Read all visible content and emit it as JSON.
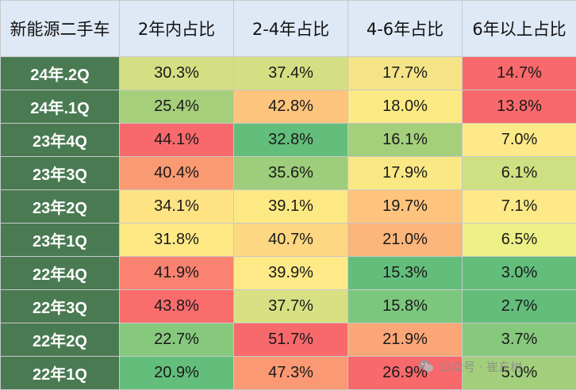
{
  "chart_data": {
    "type": "table",
    "columns": [
      "新能源二手车",
      "2年内占比",
      "2-4年占比",
      "4-6年占比",
      "6年以上占比"
    ],
    "rows": [
      {
        "label": "24年.2Q",
        "values": [
          "30.3%",
          "37.4%",
          "17.7%",
          "14.7%"
        ],
        "colors": [
          "#d3df82",
          "#d4df83",
          "#f4e487",
          "#f8696b"
        ]
      },
      {
        "label": "24年.1Q",
        "values": [
          "25.4%",
          "42.8%",
          "18.0%",
          "13.8%"
        ],
        "colors": [
          "#a6cf7c",
          "#fdc47d",
          "#fbe983",
          "#f8696b"
        ]
      },
      {
        "label": "23年4Q",
        "values": [
          "44.1%",
          "32.8%",
          "16.1%",
          "7.0%"
        ],
        "colors": [
          "#f8696b",
          "#63be7b",
          "#a4cf7b",
          "#fde987"
        ]
      },
      {
        "label": "23年3Q",
        "values": [
          "40.4%",
          "35.6%",
          "17.9%",
          "6.1%"
        ],
        "colors": [
          "#fa9a73",
          "#9ecd7b",
          "#f9e883",
          "#cfe082"
        ]
      },
      {
        "label": "23年2Q",
        "values": [
          "34.1%",
          "39.1%",
          "19.7%",
          "7.1%"
        ],
        "colors": [
          "#fee383",
          "#fde983",
          "#fec47d",
          "#fde987"
        ]
      },
      {
        "label": "23年1Q",
        "values": [
          "31.8%",
          "40.7%",
          "21.0%",
          "6.5%"
        ],
        "colors": [
          "#ffe985",
          "#fdd781",
          "#fcb57a",
          "#ecf086"
        ]
      },
      {
        "label": "22年4Q",
        "values": [
          "41.9%",
          "39.9%",
          "15.3%",
          "3.0%"
        ],
        "colors": [
          "#f98370",
          "#ffea87",
          "#63be7b",
          "#63be7b"
        ]
      },
      {
        "label": "22年3Q",
        "values": [
          "43.8%",
          "37.7%",
          "15.8%",
          "2.7%"
        ],
        "colors": [
          "#f86d6c",
          "#d7e183",
          "#7bc77d",
          "#63be7b"
        ]
      },
      {
        "label": "22年2Q",
        "values": [
          "22.7%",
          "51.7%",
          "21.9%",
          "3.7%"
        ],
        "colors": [
          "#86c97d",
          "#f8696b",
          "#fba676",
          "#86c97d"
        ]
      },
      {
        "label": "22年1Q",
        "values": [
          "20.9%",
          "47.3%",
          "26.9%",
          "5.0%"
        ],
        "colors": [
          "#63be7b",
          "#fb9974",
          "#f8696b",
          "#a3cf7c"
        ]
      }
    ]
  },
  "watermark": {
    "text": "公众号 · 崔东树",
    "icon": "wechat-icon"
  }
}
